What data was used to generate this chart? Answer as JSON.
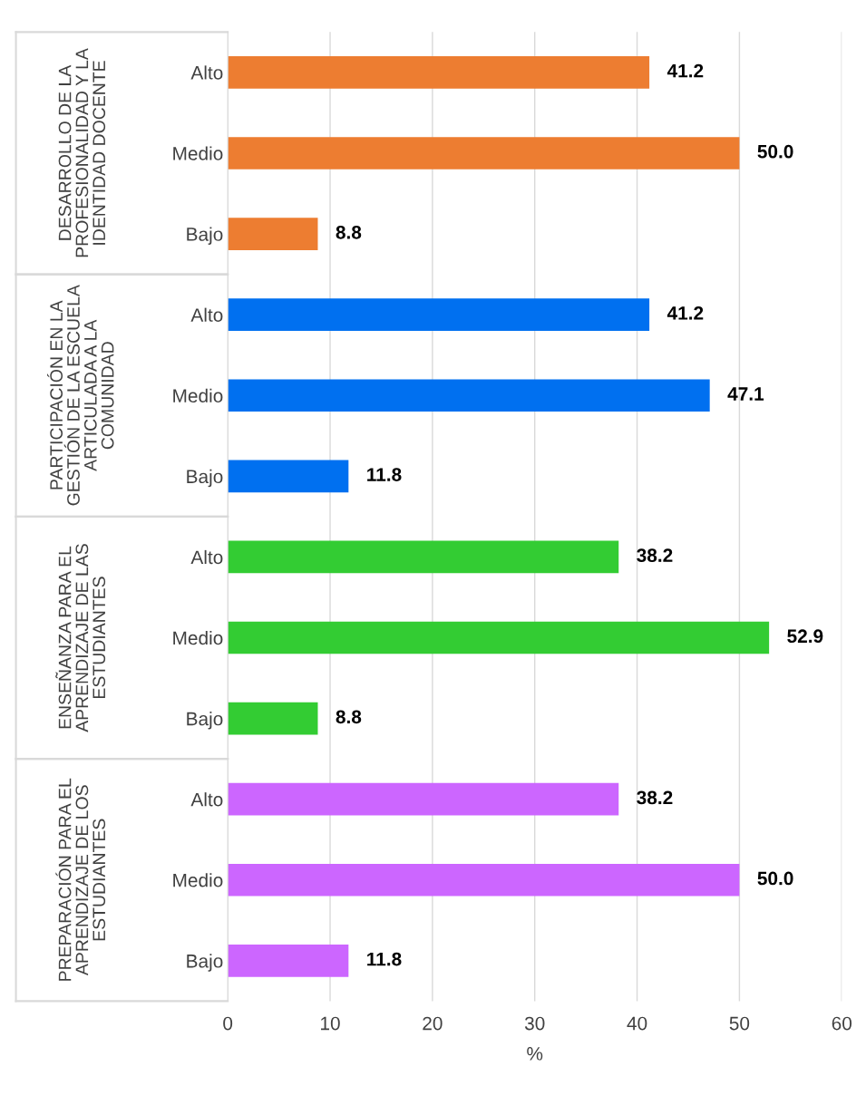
{
  "chart_data": {
    "type": "bar",
    "orientation": "horizontal",
    "xlabel": "%",
    "categories": [
      "Alto",
      "Medio",
      "Bajo",
      "Alto",
      "Medio",
      "Bajo",
      "Alto",
      "Medio",
      "Bajo",
      "Alto",
      "Medio",
      "Bajo"
    ],
    "series": [
      {
        "color": "#ed7d31",
        "values": [
          41.2,
          50.0,
          8.8,
          null,
          null,
          null,
          null,
          null,
          null,
          null,
          null,
          null
        ],
        "value_labels": [
          "41.2",
          "50.0",
          "8.8",
          null,
          null,
          null,
          null,
          null,
          null,
          null,
          null,
          null
        ]
      },
      {
        "color": "#0070f0",
        "values": [
          null,
          null,
          null,
          41.2,
          47.1,
          11.8,
          null,
          null,
          null,
          null,
          null,
          null
        ],
        "value_labels": [
          null,
          null,
          null,
          "41.2",
          "47.1",
          "11.8",
          null,
          null,
          null,
          null,
          null,
          null
        ]
      },
      {
        "color": "#33cc33",
        "values": [
          null,
          null,
          null,
          null,
          null,
          null,
          38.2,
          52.9,
          8.8,
          null,
          null,
          null
        ],
        "value_labels": [
          null,
          null,
          null,
          null,
          null,
          null,
          "38.2",
          "52.9",
          "8.8",
          null,
          null,
          null
        ]
      },
      {
        "color": "#cc66ff",
        "values": [
          null,
          null,
          null,
          null,
          null,
          null,
          null,
          null,
          null,
          38.2,
          50.0,
          11.8
        ],
        "value_labels": [
          null,
          null,
          null,
          null,
          null,
          null,
          null,
          null,
          null,
          "38.2",
          "50.0",
          "11.8"
        ]
      }
    ],
    "annotations": [
      "DESARROLLO DE LA\nPROFESIONALIDAD Y LA\nIDENTIDAD DOCENTE",
      "PARTICIPACIÓN EN LA\nGESTIÓN DE LA ESCUELA\nARTICULADA A LA\nCOMUNIDAD",
      "ENSEÑANZA PARA EL\nAPRENDIZAJE DE LAS\nESTUDIANTES",
      "PREPARACIÓN PARA EL\nAPRENDIZAJE DE LOS\nESTUDIANTES"
    ],
    "xlim": [
      0,
      60
    ],
    "xticks": [
      0,
      10,
      20,
      30,
      40,
      50,
      60
    ],
    "grid": "x",
    "legend": false
  }
}
